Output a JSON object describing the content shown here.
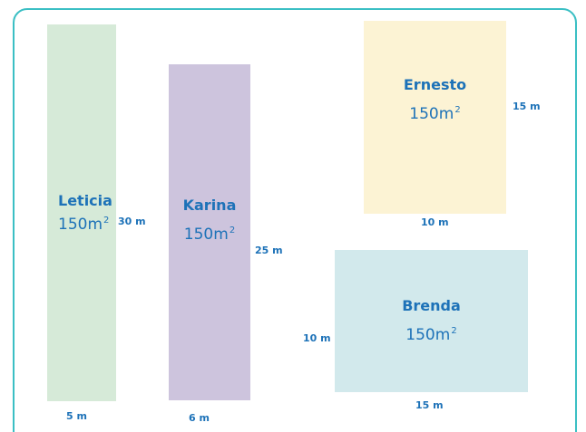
{
  "plots": [
    {
      "id": "leticia",
      "name": "Leticia",
      "area": "150m",
      "area_exp": "2",
      "width": "5 m",
      "height": "30 m",
      "color": "#d6ead8"
    },
    {
      "id": "karina",
      "name": "Karina",
      "area": "150m",
      "area_exp": "2",
      "width": "6 m",
      "height": "25 m",
      "color": "#cdc4dd"
    },
    {
      "id": "ernesto",
      "name": "Ernesto",
      "area": "150m",
      "area_exp": "2",
      "width": "10 m",
      "height": "15 m",
      "color": "#fcf3d4"
    },
    {
      "id": "brenda",
      "name": "Brenda",
      "area": "150m",
      "area_exp": "2",
      "width": "15 m",
      "height": "10 m",
      "color": "#d2e9ec"
    }
  ],
  "frame_color": "#3bbfc4",
  "text_color": "#1d72b8"
}
